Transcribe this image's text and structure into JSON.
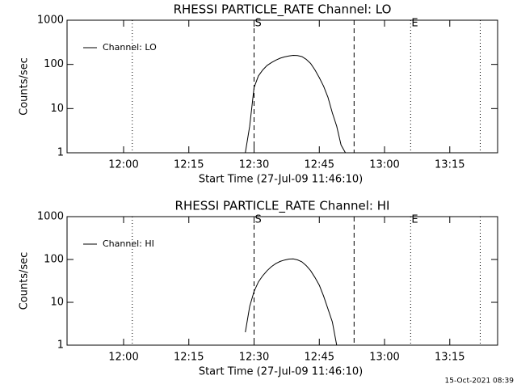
{
  "chart_data": [
    {
      "type": "line",
      "title": "RHESSI PARTICLE_RATE Channel: LO",
      "xlabel": "Start Time (27-Jul-09 11:46:10)",
      "ylabel": "Counts/sec",
      "log_y": true,
      "legend": "upper left",
      "xlim": [
        "11:47",
        "13:26"
      ],
      "xticks": [
        "12:00",
        "12:15",
        "12:30",
        "12:45",
        "13:00",
        "13:15"
      ],
      "ylim": [
        1,
        1000
      ],
      "yticks": [
        1,
        10,
        100,
        1000
      ],
      "x": [
        "12:28",
        "12:29",
        "12:30",
        "12:31",
        "12:32",
        "12:33",
        "12:34",
        "12:35",
        "12:36",
        "12:37",
        "12:38",
        "12:39",
        "12:40",
        "12:41",
        "12:42",
        "12:43",
        "12:44",
        "12:45",
        "12:46",
        "12:47",
        "12:48",
        "12:49",
        "12:50",
        "12:51"
      ],
      "series": [
        {
          "name": "Channel: LO",
          "color": "#000000",
          "values": [
            1,
            4,
            30,
            55,
            75,
            95,
            110,
            125,
            138,
            148,
            155,
            160,
            158,
            150,
            130,
            105,
            75,
            50,
            32,
            18,
            8,
            4,
            1.5,
            1
          ]
        }
      ],
      "markers": [
        {
          "x": "12:02",
          "style": "dotted"
        },
        {
          "x": "12:30",
          "style": "dashed",
          "label": "S"
        },
        {
          "x": "12:53",
          "style": "dashed"
        },
        {
          "x": "13:06",
          "style": "dotted",
          "label": "E"
        },
        {
          "x": "13:22",
          "style": "dotted"
        }
      ]
    },
    {
      "type": "line",
      "title": "RHESSI PARTICLE_RATE Channel: HI",
      "xlabel": "Start Time (27-Jul-09 11:46:10)",
      "ylabel": "Counts/sec",
      "log_y": true,
      "legend": "upper left",
      "xlim": [
        "11:47",
        "13:26"
      ],
      "xticks": [
        "12:00",
        "12:15",
        "12:30",
        "12:45",
        "13:00",
        "13:15"
      ],
      "ylim": [
        1,
        1000
      ],
      "yticks": [
        1,
        10,
        100,
        1000
      ],
      "x": [
        "12:28",
        "12:29",
        "12:30",
        "12:31",
        "12:32",
        "12:33",
        "12:34",
        "12:35",
        "12:36",
        "12:37",
        "12:38",
        "12:39",
        "12:40",
        "12:41",
        "12:42",
        "12:43",
        "12:44",
        "12:45",
        "12:46",
        "12:47",
        "12:48",
        "12:49"
      ],
      "series": [
        {
          "name": "Channel: HI",
          "color": "#000000",
          "values": [
            2,
            8,
            18,
            30,
            42,
            55,
            68,
            80,
            90,
            97,
            102,
            103,
            98,
            88,
            72,
            55,
            38,
            25,
            14,
            7,
            3.5,
            1
          ]
        }
      ],
      "markers": [
        {
          "x": "12:02",
          "style": "dotted"
        },
        {
          "x": "12:30",
          "style": "dashed",
          "label": "S"
        },
        {
          "x": "12:53",
          "style": "dashed"
        },
        {
          "x": "13:06",
          "style": "dotted",
          "label": "E"
        },
        {
          "x": "13:22",
          "style": "dotted"
        }
      ]
    }
  ],
  "footer": "15-Oct-2021 08:39"
}
